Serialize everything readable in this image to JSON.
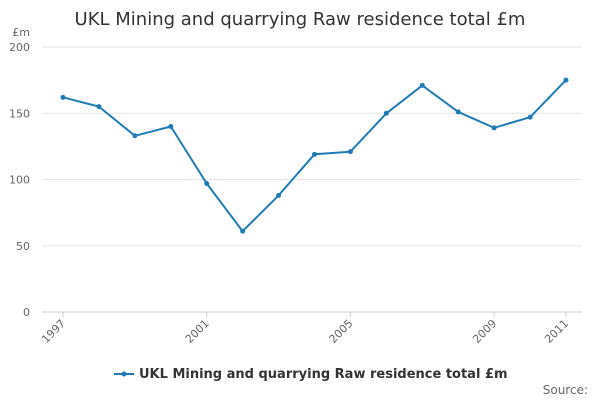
{
  "chart_data": {
    "type": "line",
    "title": "UKL Mining and quarrying Raw residence total £m",
    "ylabel": "£m",
    "xlabel": "",
    "x": [
      1997,
      1998,
      1999,
      2000,
      2001,
      2002,
      2003,
      2004,
      2005,
      2006,
      2007,
      2008,
      2009,
      2010,
      2011
    ],
    "x_tick_labels": [
      "1997",
      "2001",
      "2005",
      "2009",
      "2011"
    ],
    "ylim": [
      0,
      200
    ],
    "y_ticks": [
      0,
      50,
      100,
      150,
      200
    ],
    "grid": true,
    "legend_position": "bottom",
    "series": [
      {
        "name": "UKL Mining and quarrying Raw residence total £m",
        "color": "#1f7bb6",
        "values": [
          162,
          155,
          133,
          140,
          97,
          61,
          88,
          119,
          121,
          150,
          171,
          151,
          139,
          147,
          175
        ]
      }
    ]
  },
  "source_label": "Source:"
}
